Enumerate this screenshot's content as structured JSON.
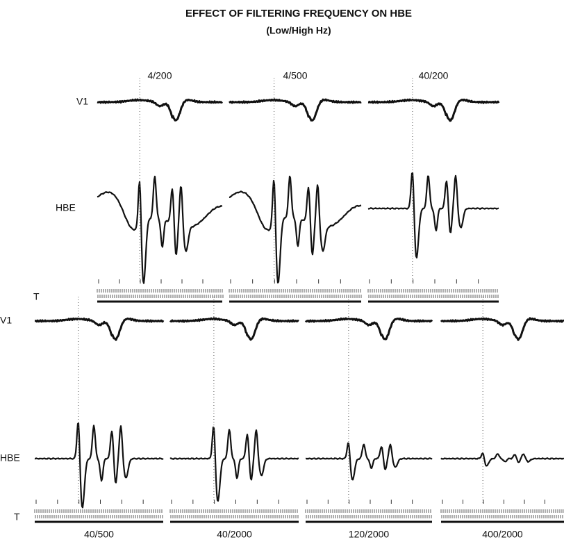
{
  "header": {
    "title": "EFFECT OF FILTERING FREQUENCY ON HBE",
    "subtitle": "(Low/High Hz)"
  },
  "rows": [
    {
      "labels": [
        "V1",
        "HBE",
        "T"
      ],
      "panels": [
        "4/200",
        "4/500",
        "40/200"
      ]
    },
    {
      "labels": [
        "V1",
        "HBE",
        "T"
      ],
      "panels": [
        "40/500",
        "40/2000",
        "120/2000",
        "400/2000"
      ]
    }
  ]
}
